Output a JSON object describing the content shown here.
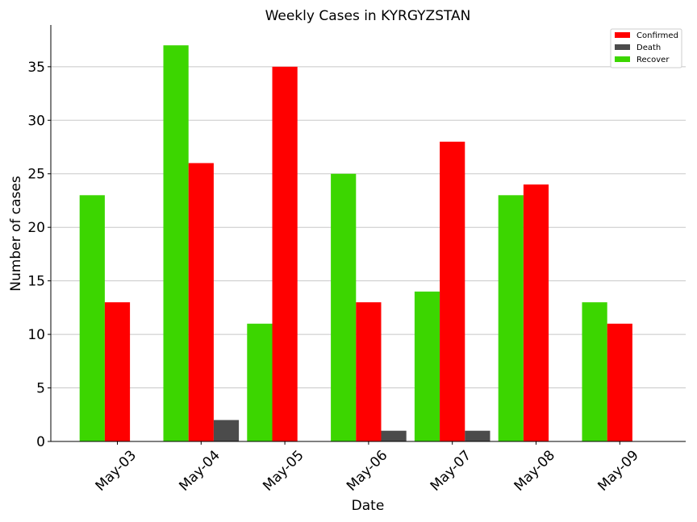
{
  "chart_data": {
    "type": "bar",
    "title": "Weekly Cases in KYRGYZSTAN",
    "xlabel": "Date",
    "ylabel": "Number of cases",
    "categories": [
      "May-03",
      "May-04",
      "May-05",
      "May-06",
      "May-07",
      "May-08",
      "May-09"
    ],
    "series": [
      {
        "name": "Recover",
        "color": "#3cd600",
        "values": [
          23,
          37,
          11,
          25,
          14,
          23,
          13
        ]
      },
      {
        "name": "Confirmed",
        "color": "#ff0000",
        "values": [
          13,
          26,
          35,
          13,
          28,
          24,
          11
        ]
      },
      {
        "name": "Death",
        "color": "#4b4b4b",
        "values": [
          0,
          2,
          0,
          1,
          1,
          0,
          0
        ]
      }
    ],
    "legend_order": [
      "Confirmed",
      "Death",
      "Recover"
    ],
    "ylim": [
      0,
      38.9
    ],
    "yticks": [
      0,
      5,
      10,
      15,
      20,
      25,
      30,
      35
    ],
    "grid": "horizontal",
    "legend_position": "top-right"
  }
}
